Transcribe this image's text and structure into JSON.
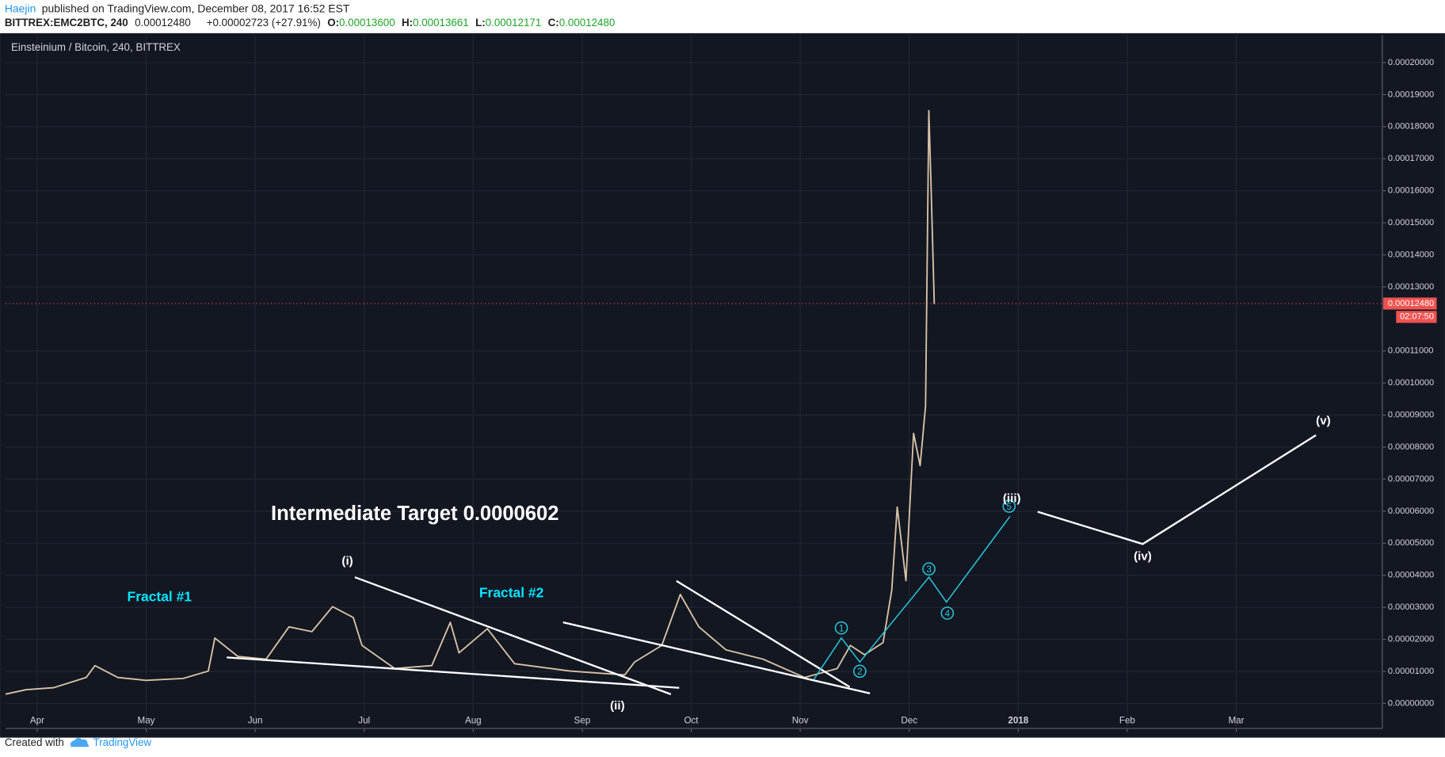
{
  "header": {
    "author": "Haejin",
    "published": "published on TradingView.com, December 08, 2017 16:52 EST",
    "symbol": "BITTREX:EMC2BTC, 240",
    "last": "0.00012480",
    "change": "+0.00002723 (+27.91%)",
    "open_label": "O:",
    "open": "0.00013600",
    "high_label": "H:",
    "high": "0.00013661",
    "low_label": "L:",
    "low": "0.00012171",
    "close_label": "C:",
    "close": "0.00012480"
  },
  "chart_data": {
    "type": "line",
    "title": "Einsteinium / Bitcoin, 240, BITTREX",
    "color": "#d8c3a5",
    "grid": true,
    "x": [
      -0.29,
      -0.1,
      0.15,
      0.45,
      0.53,
      0.74,
      1.0,
      1.34,
      1.57,
      1.63,
      1.84,
      2.1,
      2.31,
      2.52,
      2.71,
      2.9,
      2.98,
      3.28,
      3.62,
      3.79,
      3.87,
      4.13,
      4.38,
      4.89,
      5.39,
      5.48,
      5.73,
      5.9,
      6.07,
      6.32,
      6.66,
      7.04,
      7.34,
      7.46,
      7.59,
      7.76,
      7.84,
      7.89,
      7.97,
      8.04,
      8.1,
      8.15,
      8.18,
      8.2,
      8.23
    ],
    "values": [
      2.9e-06,
      4.3e-06,
      4.9e-06,
      8.1e-06,
      1.18e-05,
      8.1e-06,
      7.2e-06,
      7.8e-06,
      1.01e-05,
      2.04e-05,
      1.47e-05,
      1.38e-05,
      2.39e-05,
      2.24e-05,
      3.02e-05,
      2.68e-05,
      1.81e-05,
      1.09e-05,
      1.18e-05,
      2.53e-05,
      1.58e-05,
      2.33e-05,
      1.24e-05,
      1.01e-05,
      8.9e-06,
      1.29e-05,
      1.81e-05,
      3.4e-05,
      2.39e-05,
      1.67e-05,
      1.38e-05,
      8.1e-06,
      1.09e-05,
      1.81e-05,
      1.52e-05,
      1.9e-05,
      3.54e-05,
      6.13e-05,
      3.83e-05,
      8.43e-05,
      7.42e-05,
      9.29e-05,
      0.000185,
      0.000162,
      0.0001246
    ],
    "xlim": [
      -0.29,
      12.34
    ],
    "xticks": [
      {
        "value": 0,
        "label": "Apr"
      },
      {
        "value": 1,
        "label": "May"
      },
      {
        "value": 2,
        "label": "Jun"
      },
      {
        "value": 3,
        "label": "Jul"
      },
      {
        "value": 4,
        "label": "Aug"
      },
      {
        "value": 5,
        "label": "Sep"
      },
      {
        "value": 6,
        "label": "Oct"
      },
      {
        "value": 7,
        "label": "Nov"
      },
      {
        "value": 8,
        "label": "Dec"
      },
      {
        "value": 9,
        "label": "2018"
      },
      {
        "value": 10,
        "label": "Feb"
      },
      {
        "value": 11,
        "label": "Mar"
      }
    ],
    "ylim": [
      -7.8e-06,
      0.0002086
    ],
    "yticks": [
      {
        "value": 0,
        "label": "0.00000000"
      },
      {
        "value": 1e-05,
        "label": "0.00001000"
      },
      {
        "value": 2e-05,
        "label": "0.00002000"
      },
      {
        "value": 3e-05,
        "label": "0.00003000"
      },
      {
        "value": 4e-05,
        "label": "0.00004000"
      },
      {
        "value": 5e-05,
        "label": "0.00005000"
      },
      {
        "value": 6e-05,
        "label": "0.00006000"
      },
      {
        "value": 7e-05,
        "label": "0.00007000"
      },
      {
        "value": 8e-05,
        "label": "0.00008000"
      },
      {
        "value": 9e-05,
        "label": "0.00009000"
      },
      {
        "value": 0.0001,
        "label": "0.00010000"
      },
      {
        "value": 0.00011,
        "label": "0.00011000"
      },
      {
        "value": 0.00013,
        "label": "0.00013000"
      },
      {
        "value": 0.00014,
        "label": "0.00014000"
      },
      {
        "value": 0.00015,
        "label": "0.00015000"
      },
      {
        "value": 0.00016,
        "label": "0.00016000"
      },
      {
        "value": 0.00017,
        "label": "0.00017000"
      },
      {
        "value": 0.00018,
        "label": "0.00018000"
      },
      {
        "value": 0.00019,
        "label": "0.00019000"
      },
      {
        "value": 0.0002,
        "label": "0.00020000"
      }
    ],
    "price_tag": {
      "value": 0.0001248,
      "label": "0.00012480"
    },
    "countdown": "02:07:50",
    "annotations": {
      "target": "Intermediate Target 0.0000602",
      "fractal_1": "Fractal #1",
      "fractal_2": "Fractal #2",
      "wave_i": "(i)",
      "wave_ii": "(ii)",
      "wave_iii": "(iii)",
      "wave_iv": "(iv)",
      "wave_v": "(v)",
      "minor": [
        "1",
        "2",
        "3",
        "4",
        "5"
      ]
    }
  },
  "footer": {
    "created": "Created with",
    "brand": "TradingView"
  }
}
